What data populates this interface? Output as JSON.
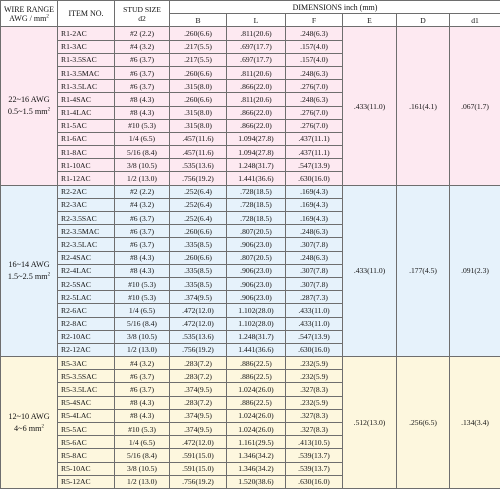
{
  "header": {
    "wire_range_line1": "WIRE RANGE",
    "wire_range_line2": "AWG / mm",
    "item_no": "ITEM NO.",
    "stud_size_line1": "STUD SIZE",
    "stud_size_line2": "d2",
    "dimensions": "DIMENSIONS inch (mm)",
    "cols": [
      "B",
      "L",
      "F",
      "E",
      "D",
      "d1"
    ]
  },
  "colors": {
    "group1_bg": "#fde9f1",
    "group2_bg": "#e6f2fb",
    "group3_bg": "#fdf7de",
    "border": "#6e6e6e"
  },
  "groups": [
    {
      "range_line1": "22~16 AWG",
      "range_line2": "0.5~1.5 mm",
      "E": ".433(11.0)",
      "D": ".161(4.1)",
      "d1": ".067(1.7)",
      "rows": [
        {
          "item": "R1-2AC",
          "stud": "#2 (2.2)",
          "B": ".260(6.6)",
          "L": ".811(20.6)",
          "F": ".248(6.3)"
        },
        {
          "item": "R1-3AC",
          "stud": "#4 (3.2)",
          "B": ".217(5.5)",
          "L": ".697(17.7)",
          "F": ".157(4.0)"
        },
        {
          "item": "R1-3.5SAC",
          "stud": "#6 (3.7)",
          "B": ".217(5.5)",
          "L": ".697(17.7)",
          "F": ".157(4.0)"
        },
        {
          "item": "R1-3.5MAC",
          "stud": "#6 (3.7)",
          "B": ".260(6.6)",
          "L": ".811(20.6)",
          "F": ".248(6.3)"
        },
        {
          "item": "R1-3.5LAC",
          "stud": "#6 (3.7)",
          "B": ".315(8.0)",
          "L": ".866(22.0)",
          "F": ".276(7.0)"
        },
        {
          "item": "R1-4SAC",
          "stud": "#8 (4.3)",
          "B": ".260(6.6)",
          "L": ".811(20.6)",
          "F": ".248(6.3)"
        },
        {
          "item": "R1-4LAC",
          "stud": "#8 (4.3)",
          "B": ".315(8.0)",
          "L": ".866(22.0)",
          "F": ".276(7.0)"
        },
        {
          "item": "R1-5AC",
          "stud": "#10 (5.3)",
          "B": ".315(8.0)",
          "L": ".866(22.0)",
          "F": ".276(7.0)"
        },
        {
          "item": "R1-6AC",
          "stud": "1/4 (6.5)",
          "B": ".457(11.6)",
          "L": "1.094(27.8)",
          "F": ".437(11.1)"
        },
        {
          "item": "R1-8AC",
          "stud": "5/16 (8.4)",
          "B": ".457(11.6)",
          "L": "1.094(27.8)",
          "F": ".437(11.1)"
        },
        {
          "item": "R1-10AC",
          "stud": "3/8 (10.5)",
          "B": ".535(13.6)",
          "L": "1.248(31.7)",
          "F": ".547(13.9)"
        },
        {
          "item": "R1-12AC",
          "stud": "1/2 (13.0)",
          "B": ".756(19.2)",
          "L": "1.441(36.6)",
          "F": ".630(16.0)"
        }
      ]
    },
    {
      "range_line1": "16~14 AWG",
      "range_line2": "1.5~2.5 mm",
      "E": ".433(11.0)",
      "D": ".177(4.5)",
      "d1": ".091(2.3)",
      "rows": [
        {
          "item": "R2-2AC",
          "stud": "#2 (2.2)",
          "B": ".252(6.4)",
          "L": ".728(18.5)",
          "F": ".169(4.3)"
        },
        {
          "item": "R2-3AC",
          "stud": "#4 (3.2)",
          "B": ".252(6.4)",
          "L": ".728(18.5)",
          "F": ".169(4.3)"
        },
        {
          "item": "R2-3.5SAC",
          "stud": "#6 (3.7)",
          "B": ".252(6.4)",
          "L": ".728(18.5)",
          "F": ".169(4.3)"
        },
        {
          "item": "R2-3.5MAC",
          "stud": "#6 (3.7)",
          "B": ".260(6.6)",
          "L": ".807(20.5)",
          "F": ".248(6.3)"
        },
        {
          "item": "R2-3.5LAC",
          "stud": "#6 (3.7)",
          "B": ".335(8.5)",
          "L": ".906(23.0)",
          "F": ".307(7.8)"
        },
        {
          "item": "R2-4SAC",
          "stud": "#8 (4.3)",
          "B": ".260(6.6)",
          "L": ".807(20.5)",
          "F": ".248(6.3)"
        },
        {
          "item": "R2-4LAC",
          "stud": "#8 (4.3)",
          "B": ".335(8.5)",
          "L": ".906(23.0)",
          "F": ".307(7.8)"
        },
        {
          "item": "R2-5SAC",
          "stud": "#10 (5.3)",
          "B": ".335(8.5)",
          "L": ".906(23.0)",
          "F": ".307(7.8)"
        },
        {
          "item": "R2-5LAC",
          "stud": "#10 (5.3)",
          "B": ".374(9.5)",
          "L": ".906(23.0)",
          "F": ".287(7.3)"
        },
        {
          "item": "R2-6AC",
          "stud": "1/4 (6.5)",
          "B": ".472(12.0)",
          "L": "1.102(28.0)",
          "F": ".433(11.0)"
        },
        {
          "item": "R2-8AC",
          "stud": "5/16 (8.4)",
          "B": ".472(12.0)",
          "L": "1.102(28.0)",
          "F": ".433(11.0)"
        },
        {
          "item": "R2-10AC",
          "stud": "3/8 (10.5)",
          "B": ".535(13.6)",
          "L": "1.248(31.7)",
          "F": ".547(13.9)"
        },
        {
          "item": "R2-12AC",
          "stud": "1/2 (13.0)",
          "B": ".756(19.2)",
          "L": "1.441(36.6)",
          "F": ".630(16.0)"
        }
      ]
    },
    {
      "range_line1": "12~10 AWG",
      "range_line2": "4~6 mm",
      "E": ".512(13.0)",
      "D": ".256(6.5)",
      "d1": ".134(3.4)",
      "rows": [
        {
          "item": "R5-3AC",
          "stud": "#4 (3.2)",
          "B": ".283(7.2)",
          "L": ".886(22.5)",
          "F": ".232(5.9)"
        },
        {
          "item": "R5-3.5SAC",
          "stud": "#6 (3.7)",
          "B": ".283(7.2)",
          "L": ".886(22.5)",
          "F": ".232(5.9)"
        },
        {
          "item": "R5-3.5LAC",
          "stud": "#6 (3.7)",
          "B": ".374(9.5)",
          "L": "1.024(26.0)",
          "F": ".327(8.3)"
        },
        {
          "item": "R5-4SAC",
          "stud": "#8 (4.3)",
          "B": ".283(7.2)",
          "L": ".886(22.5)",
          "F": ".232(5.9)"
        },
        {
          "item": "R5-4LAC",
          "stud": "#8 (4.3)",
          "B": ".374(9.5)",
          "L": "1.024(26.0)",
          "F": ".327(8.3)"
        },
        {
          "item": "R5-5AC",
          "stud": "#10 (5.3)",
          "B": ".374(9.5)",
          "L": "1.024(26.0)",
          "F": ".327(8.3)"
        },
        {
          "item": "R5-6AC",
          "stud": "1/4 (6.5)",
          "B": ".472(12.0)",
          "L": "1.161(29.5)",
          "F": ".413(10.5)"
        },
        {
          "item": "R5-8AC",
          "stud": "5/16 (8.4)",
          "B": ".591(15.0)",
          "L": "1.346(34.2)",
          "F": ".539(13.7)"
        },
        {
          "item": "R5-10AC",
          "stud": "3/8 (10.5)",
          "B": ".591(15.0)",
          "L": "1.346(34.2)",
          "F": ".539(13.7)"
        },
        {
          "item": "R5-12AC",
          "stud": "1/2 (13.0)",
          "B": ".756(19.2)",
          "L": "1.520(38.6)",
          "F": ".630(16.0)"
        }
      ]
    }
  ]
}
